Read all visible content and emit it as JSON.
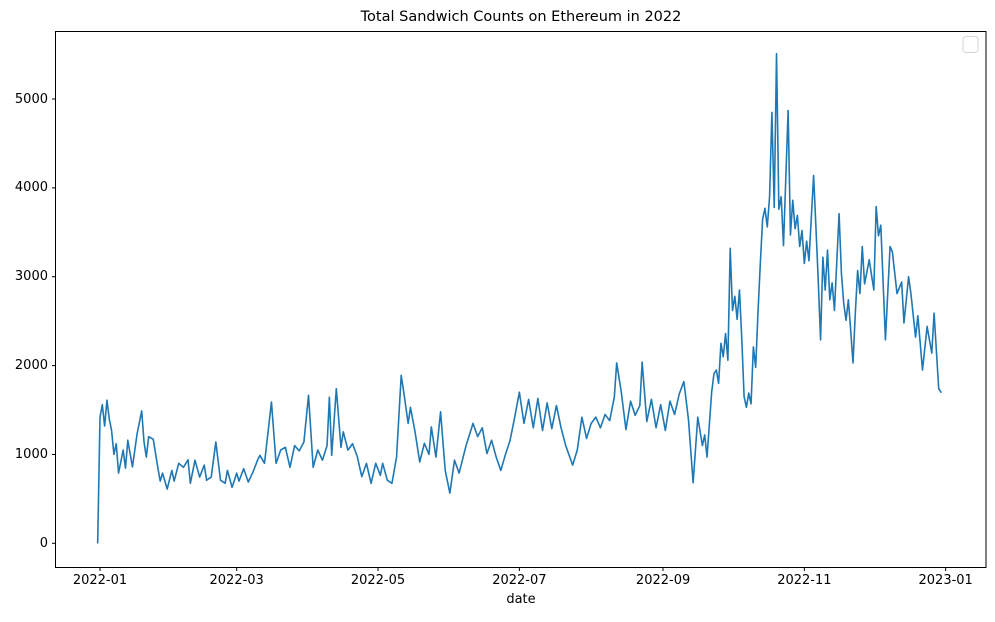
{
  "figure": {
    "title": "Total Sandwich Counts on Ethereum in 2022",
    "xlabel": "date"
  },
  "chart_data": {
    "type": "line",
    "title": "Total Sandwich Counts on Ethereum in 2022",
    "xlabel": "date",
    "ylabel": "",
    "grid": false,
    "line_color": "#1f77b4",
    "background_color": "#ffffff",
    "legend": {
      "visible": true,
      "position": "upper right",
      "entries": []
    },
    "x_tick_labels": [
      "2022-01",
      "2022-03",
      "2022-05",
      "2022-07",
      "2022-09",
      "2022-11",
      "2023-01"
    ],
    "y_tick_labels": [
      "0",
      "1000",
      "2000",
      "3000",
      "4000",
      "5000"
    ],
    "y_tick_values": [
      0,
      1000,
      2000,
      3000,
      4000,
      5000
    ],
    "ylim": [
      -275,
      5785
    ],
    "xlim": [
      "2021-12-13",
      "2023-01-17"
    ],
    "points": [
      [
        "2021-12-31",
        5
      ],
      [
        "2022-01-01",
        1420
      ],
      [
        "2022-01-02",
        1560
      ],
      [
        "2022-01-03",
        1320
      ],
      [
        "2022-01-04",
        1610
      ],
      [
        "2022-01-05",
        1400
      ],
      [
        "2022-01-06",
        1270
      ],
      [
        "2022-01-07",
        1000
      ],
      [
        "2022-01-08",
        1120
      ],
      [
        "2022-01-09",
        790
      ],
      [
        "2022-01-11",
        1050
      ],
      [
        "2022-01-12",
        845
      ],
      [
        "2022-01-13",
        1160
      ],
      [
        "2022-01-15",
        860
      ],
      [
        "2022-01-17",
        1230
      ],
      [
        "2022-01-19",
        1490
      ],
      [
        "2022-01-20",
        1140
      ],
      [
        "2022-01-21",
        970
      ],
      [
        "2022-01-22",
        1200
      ],
      [
        "2022-01-24",
        1170
      ],
      [
        "2022-01-26",
        845
      ],
      [
        "2022-01-27",
        700
      ],
      [
        "2022-01-28",
        790
      ],
      [
        "2022-01-30",
        610
      ],
      [
        "2022-02-01",
        820
      ],
      [
        "2022-02-02",
        700
      ],
      [
        "2022-02-04",
        900
      ],
      [
        "2022-02-06",
        855
      ],
      [
        "2022-02-08",
        940
      ],
      [
        "2022-02-09",
        675
      ],
      [
        "2022-02-11",
        935
      ],
      [
        "2022-02-13",
        745
      ],
      [
        "2022-02-15",
        880
      ],
      [
        "2022-02-16",
        710
      ],
      [
        "2022-02-18",
        745
      ],
      [
        "2022-02-20",
        1140
      ],
      [
        "2022-02-22",
        710
      ],
      [
        "2022-02-24",
        675
      ],
      [
        "2022-02-25",
        820
      ],
      [
        "2022-02-27",
        630
      ],
      [
        "2022-03-01",
        790
      ],
      [
        "2022-03-02",
        700
      ],
      [
        "2022-03-04",
        840
      ],
      [
        "2022-03-06",
        690
      ],
      [
        "2022-03-08",
        800
      ],
      [
        "2022-03-10",
        935
      ],
      [
        "2022-03-11",
        990
      ],
      [
        "2022-03-13",
        900
      ],
      [
        "2022-03-16",
        1590
      ],
      [
        "2022-03-18",
        900
      ],
      [
        "2022-03-20",
        1050
      ],
      [
        "2022-03-22",
        1080
      ],
      [
        "2022-03-24",
        855
      ],
      [
        "2022-03-26",
        1100
      ],
      [
        "2022-03-28",
        1040
      ],
      [
        "2022-03-30",
        1140
      ],
      [
        "2022-04-01",
        1665
      ],
      [
        "2022-04-03",
        855
      ],
      [
        "2022-04-05",
        1050
      ],
      [
        "2022-04-07",
        935
      ],
      [
        "2022-04-09",
        1100
      ],
      [
        "2022-04-10",
        1645
      ],
      [
        "2022-04-11",
        990
      ],
      [
        "2022-04-13",
        1740
      ],
      [
        "2022-04-15",
        1080
      ],
      [
        "2022-04-16",
        1255
      ],
      [
        "2022-04-18",
        1050
      ],
      [
        "2022-04-20",
        1120
      ],
      [
        "2022-04-22",
        980
      ],
      [
        "2022-04-24",
        750
      ],
      [
        "2022-04-26",
        900
      ],
      [
        "2022-04-28",
        675
      ],
      [
        "2022-04-30",
        900
      ],
      [
        "2022-05-02",
        765
      ],
      [
        "2022-05-03",
        900
      ],
      [
        "2022-05-05",
        710
      ],
      [
        "2022-05-07",
        675
      ],
      [
        "2022-05-09",
        970
      ],
      [
        "2022-05-11",
        1890
      ],
      [
        "2022-05-12",
        1720
      ],
      [
        "2022-05-14",
        1350
      ],
      [
        "2022-05-15",
        1530
      ],
      [
        "2022-05-17",
        1250
      ],
      [
        "2022-05-19",
        915
      ],
      [
        "2022-05-21",
        1125
      ],
      [
        "2022-05-23",
        1000
      ],
      [
        "2022-05-24",
        1310
      ],
      [
        "2022-05-26",
        970
      ],
      [
        "2022-05-28",
        1480
      ],
      [
        "2022-05-30",
        820
      ],
      [
        "2022-06-01",
        565
      ],
      [
        "2022-06-03",
        935
      ],
      [
        "2022-06-05",
        790
      ],
      [
        "2022-06-08",
        1100
      ],
      [
        "2022-06-11",
        1350
      ],
      [
        "2022-06-13",
        1200
      ],
      [
        "2022-06-15",
        1300
      ],
      [
        "2022-06-17",
        1010
      ],
      [
        "2022-06-19",
        1160
      ],
      [
        "2022-06-21",
        970
      ],
      [
        "2022-06-23",
        820
      ],
      [
        "2022-06-25",
        1000
      ],
      [
        "2022-06-27",
        1160
      ],
      [
        "2022-06-29",
        1420
      ],
      [
        "2022-07-01",
        1700
      ],
      [
        "2022-07-03",
        1350
      ],
      [
        "2022-07-05",
        1620
      ],
      [
        "2022-07-07",
        1300
      ],
      [
        "2022-07-09",
        1630
      ],
      [
        "2022-07-11",
        1270
      ],
      [
        "2022-07-13",
        1580
      ],
      [
        "2022-07-15",
        1290
      ],
      [
        "2022-07-17",
        1550
      ],
      [
        "2022-07-19",
        1300
      ],
      [
        "2022-07-21",
        1100
      ],
      [
        "2022-07-24",
        880
      ],
      [
        "2022-07-26",
        1050
      ],
      [
        "2022-07-28",
        1420
      ],
      [
        "2022-07-30",
        1180
      ],
      [
        "2022-08-01",
        1350
      ],
      [
        "2022-08-03",
        1420
      ],
      [
        "2022-08-05",
        1300
      ],
      [
        "2022-08-07",
        1450
      ],
      [
        "2022-08-09",
        1380
      ],
      [
        "2022-08-11",
        1650
      ],
      [
        "2022-08-12",
        2030
      ],
      [
        "2022-08-14",
        1700
      ],
      [
        "2022-08-16",
        1280
      ],
      [
        "2022-08-18",
        1600
      ],
      [
        "2022-08-20",
        1440
      ],
      [
        "2022-08-22",
        1550
      ],
      [
        "2022-08-23",
        2040
      ],
      [
        "2022-08-25",
        1370
      ],
      [
        "2022-08-27",
        1620
      ],
      [
        "2022-08-29",
        1300
      ],
      [
        "2022-08-31",
        1560
      ],
      [
        "2022-09-02",
        1270
      ],
      [
        "2022-09-04",
        1600
      ],
      [
        "2022-09-06",
        1450
      ],
      [
        "2022-09-08",
        1680
      ],
      [
        "2022-09-10",
        1820
      ],
      [
        "2022-09-12",
        1390
      ],
      [
        "2022-09-14",
        680
      ],
      [
        "2022-09-16",
        1420
      ],
      [
        "2022-09-18",
        1100
      ],
      [
        "2022-09-19",
        1220
      ],
      [
        "2022-09-20",
        970
      ],
      [
        "2022-09-22",
        1700
      ],
      [
        "2022-09-23",
        1910
      ],
      [
        "2022-09-24",
        1950
      ],
      [
        "2022-09-25",
        1800
      ],
      [
        "2022-09-26",
        2250
      ],
      [
        "2022-09-27",
        2100
      ],
      [
        "2022-09-28",
        2360
      ],
      [
        "2022-09-29",
        2060
      ],
      [
        "2022-09-30",
        3320
      ],
      [
        "2022-10-01",
        2620
      ],
      [
        "2022-10-02",
        2780
      ],
      [
        "2022-10-03",
        2520
      ],
      [
        "2022-10-04",
        2850
      ],
      [
        "2022-10-05",
        2300
      ],
      [
        "2022-10-06",
        1650
      ],
      [
        "2022-10-07",
        1530
      ],
      [
        "2022-10-08",
        1690
      ],
      [
        "2022-10-09",
        1570
      ],
      [
        "2022-10-10",
        2210
      ],
      [
        "2022-10-11",
        1980
      ],
      [
        "2022-10-12",
        2600
      ],
      [
        "2022-10-13",
        3150
      ],
      [
        "2022-10-14",
        3650
      ],
      [
        "2022-10-15",
        3770
      ],
      [
        "2022-10-16",
        3560
      ],
      [
        "2022-10-17",
        3900
      ],
      [
        "2022-10-18",
        4850
      ],
      [
        "2022-10-19",
        3780
      ],
      [
        "2022-10-20",
        5510
      ],
      [
        "2022-10-21",
        3760
      ],
      [
        "2022-10-22",
        3900
      ],
      [
        "2022-10-23",
        3350
      ],
      [
        "2022-10-25",
        4870
      ],
      [
        "2022-10-26",
        3470
      ],
      [
        "2022-10-27",
        3860
      ],
      [
        "2022-10-28",
        3540
      ],
      [
        "2022-10-29",
        3690
      ],
      [
        "2022-10-30",
        3340
      ],
      [
        "2022-10-31",
        3520
      ],
      [
        "2022-11-01",
        3150
      ],
      [
        "2022-11-02",
        3400
      ],
      [
        "2022-11-03",
        3180
      ],
      [
        "2022-11-05",
        4140
      ],
      [
        "2022-11-06",
        3560
      ],
      [
        "2022-11-07",
        2960
      ],
      [
        "2022-11-08",
        2290
      ],
      [
        "2022-11-09",
        3220
      ],
      [
        "2022-11-10",
        2850
      ],
      [
        "2022-11-11",
        3300
      ],
      [
        "2022-11-12",
        2740
      ],
      [
        "2022-11-13",
        2930
      ],
      [
        "2022-11-14",
        2620
      ],
      [
        "2022-11-16",
        3710
      ],
      [
        "2022-11-17",
        3040
      ],
      [
        "2022-11-18",
        2700
      ],
      [
        "2022-11-19",
        2510
      ],
      [
        "2022-11-20",
        2740
      ],
      [
        "2022-11-21",
        2400
      ],
      [
        "2022-11-22",
        2030
      ],
      [
        "2022-11-23",
        2590
      ],
      [
        "2022-11-24",
        3070
      ],
      [
        "2022-11-25",
        2810
      ],
      [
        "2022-11-26",
        3340
      ],
      [
        "2022-11-27",
        2920
      ],
      [
        "2022-11-29",
        3190
      ],
      [
        "2022-12-01",
        2850
      ],
      [
        "2022-12-02",
        3790
      ],
      [
        "2022-12-03",
        3460
      ],
      [
        "2022-12-04",
        3580
      ],
      [
        "2022-12-06",
        2290
      ],
      [
        "2022-12-08",
        3340
      ],
      [
        "2022-12-09",
        3280
      ],
      [
        "2022-12-11",
        2810
      ],
      [
        "2022-12-13",
        2940
      ],
      [
        "2022-12-14",
        2480
      ],
      [
        "2022-12-16",
        3000
      ],
      [
        "2022-12-17",
        2810
      ],
      [
        "2022-12-19",
        2320
      ],
      [
        "2022-12-20",
        2560
      ],
      [
        "2022-12-22",
        1950
      ],
      [
        "2022-12-24",
        2440
      ],
      [
        "2022-12-26",
        2140
      ],
      [
        "2022-12-27",
        2590
      ],
      [
        "2022-12-29",
        1740
      ],
      [
        "2022-12-30",
        1700
      ]
    ]
  }
}
